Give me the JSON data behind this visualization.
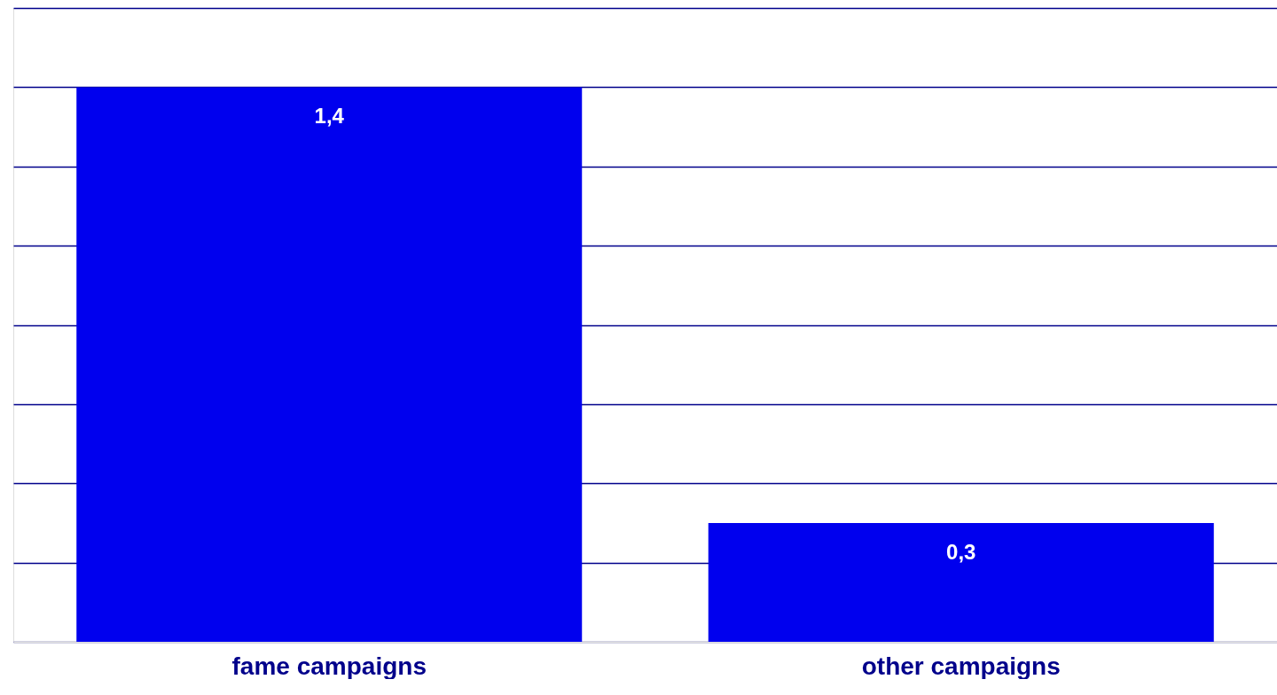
{
  "chart_data": {
    "type": "bar",
    "categories": [
      "fame campaigns",
      "other campaigns"
    ],
    "values": [
      1.4,
      0.3
    ],
    "color": "#0000ee",
    "value_labels": [
      "1,4",
      "0,3"
    ],
    "ylim": [
      0,
      1.6
    ],
    "yticks": [
      0,
      0.2,
      0.4,
      0.6,
      0.8,
      1.0,
      1.2,
      1.4,
      1.6
    ],
    "grid": "y",
    "tick_labels": "x"
  }
}
